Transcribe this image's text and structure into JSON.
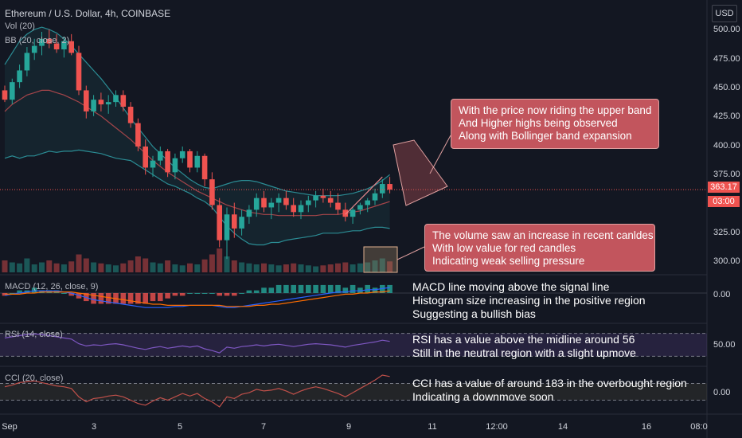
{
  "header": {
    "symbol_line": "Ethereum / U.S. Dollar, 4h, COINBASE",
    "vol_label": "Vol (20)",
    "bb_label": "BB (20, close, 2)",
    "macd_label": "MACD (12, 26, close, 9)",
    "rsi_label": "RSI (14, close)",
    "cci_label": "CCI (20, close)",
    "currency": "USD"
  },
  "price_axis": {
    "labels": [
      "500.00",
      "475.00",
      "450.00",
      "425.00",
      "400.00",
      "375.00",
      "325.00",
      "300.00"
    ],
    "current_price": "363.17",
    "countdown": "03:00"
  },
  "indicator_axis": {
    "macd_zero": "0.00",
    "rsi_mid": "50.00",
    "cci_zero": "0.00"
  },
  "time_axis": {
    "labels": [
      "Sep",
      "3",
      "5",
      "7",
      "9",
      "11",
      "12:00",
      "14",
      "16",
      "08:0"
    ]
  },
  "annotations": {
    "price_callout": [
      "With the price now riding the upper band",
      "And Higher highs being observed",
      "Along with Bollinger band expansion"
    ],
    "volume_callout": [
      "The volume saw an increase in recent canldes",
      "With low value for red candles",
      "Indicating weak selling pressure"
    ],
    "macd_notes": [
      "MACD line moving above the signal line",
      "Histogram size increasing in the positive region",
      "Suggesting a bullish bias"
    ],
    "rsi_notes": [
      "RSI has a value above the midline around 56",
      "Still in the neutral region with a slight upmove"
    ],
    "cci_notes": [
      "CCI has a value of around 183 in the overbought region",
      "Indicating a downmove soon"
    ]
  },
  "colors": {
    "background": "#131722",
    "up": "#26a69a",
    "down": "#ef5350",
    "bb_band": "#2b8c94",
    "bb_basis": "#a5454a",
    "rsi_line": "#7e57c2",
    "cci_line": "#c0504a",
    "callout_fill": "#c2555d"
  },
  "chart_data": {
    "type": "candlestick",
    "interval": "4h",
    "ylim": [
      290,
      515
    ],
    "candles": [
      [
        448,
        452,
        438,
        440
      ],
      [
        440,
        458,
        436,
        455
      ],
      [
        455,
        470,
        450,
        465
      ],
      [
        465,
        485,
        460,
        480
      ],
      [
        480,
        492,
        474,
        486
      ],
      [
        486,
        498,
        478,
        492
      ],
      [
        492,
        500,
        484,
        488
      ],
      [
        488,
        496,
        480,
        483
      ],
      [
        483,
        494,
        476,
        490
      ],
      [
        490,
        496,
        478,
        480
      ],
      [
        480,
        486,
        444,
        448
      ],
      [
        448,
        452,
        424,
        430
      ],
      [
        430,
        444,
        426,
        440
      ],
      [
        440,
        446,
        430,
        436
      ],
      [
        436,
        444,
        428,
        438
      ],
      [
        438,
        448,
        434,
        444
      ],
      [
        444,
        448,
        430,
        434
      ],
      [
        434,
        438,
        416,
        420
      ],
      [
        420,
        424,
        396,
        400
      ],
      [
        400,
        406,
        376,
        382
      ],
      [
        382,
        392,
        374,
        388
      ],
      [
        388,
        400,
        384,
        396
      ],
      [
        396,
        398,
        374,
        378
      ],
      [
        378,
        394,
        372,
        390
      ],
      [
        390,
        400,
        386,
        396
      ],
      [
        396,
        398,
        378,
        382
      ],
      [
        382,
        396,
        378,
        392
      ],
      [
        392,
        394,
        366,
        372
      ],
      [
        372,
        378,
        346,
        350
      ],
      [
        350,
        356,
        314,
        320
      ],
      [
        320,
        348,
        304,
        342
      ],
      [
        342,
        352,
        322,
        330
      ],
      [
        330,
        346,
        324,
        340
      ],
      [
        340,
        350,
        334,
        346
      ],
      [
        346,
        360,
        340,
        356
      ],
      [
        356,
        362,
        344,
        348
      ],
      [
        348,
        356,
        338,
        352
      ],
      [
        352,
        360,
        344,
        356
      ],
      [
        356,
        362,
        346,
        350
      ],
      [
        350,
        356,
        340,
        344
      ],
      [
        344,
        354,
        338,
        350
      ],
      [
        350,
        358,
        344,
        354
      ],
      [
        354,
        362,
        348,
        358
      ],
      [
        358,
        364,
        352,
        356
      ],
      [
        356,
        362,
        348,
        352
      ],
      [
        352,
        360,
        342,
        346
      ],
      [
        346,
        352,
        336,
        340
      ],
      [
        340,
        348,
        334,
        346
      ],
      [
        346,
        352,
        342,
        350
      ],
      [
        350,
        356,
        344,
        354
      ],
      [
        354,
        364,
        350,
        360
      ],
      [
        360,
        372,
        356,
        368
      ],
      [
        368,
        374,
        360,
        363.17
      ]
    ],
    "volume": [
      12,
      10,
      9,
      14,
      8,
      10,
      12,
      9,
      8,
      11,
      18,
      14,
      10,
      9,
      8,
      7,
      9,
      12,
      16,
      14,
      10,
      9,
      12,
      8,
      7,
      9,
      8,
      13,
      18,
      24,
      16,
      12,
      10,
      9,
      8,
      9,
      8,
      7,
      8,
      9,
      8,
      7,
      6,
      7,
      8,
      9,
      10,
      8,
      9,
      10,
      12,
      14,
      11
    ],
    "bollinger": {
      "basis": [
        430,
        436,
        440,
        444,
        446,
        448,
        448,
        446,
        444,
        441,
        438,
        434,
        430,
        426,
        421,
        416,
        411,
        406,
        400,
        394,
        388,
        383,
        378,
        374,
        370,
        366,
        362,
        359,
        356,
        353,
        350,
        348,
        346,
        344,
        343,
        342,
        342,
        341,
        341,
        341,
        341,
        341,
        341,
        342,
        342,
        342,
        343,
        344,
        345,
        347,
        349,
        351,
        353
      ],
      "upper": [
        470,
        480,
        490,
        496,
        500,
        502,
        500,
        497,
        492,
        486,
        479,
        472,
        465,
        458,
        450,
        442,
        433,
        424,
        416,
        408,
        400,
        394,
        388,
        382,
        377,
        372,
        368,
        365,
        364,
        366,
        368,
        370,
        371,
        371,
        370,
        368,
        366,
        364,
        362,
        361,
        360,
        359,
        358,
        358,
        358,
        358,
        359,
        360,
        362,
        364,
        367,
        371,
        376
      ],
      "lower": [
        390,
        392,
        390,
        392,
        392,
        394,
        396,
        395,
        396,
        396,
        397,
        396,
        395,
        394,
        392,
        390,
        389,
        388,
        384,
        380,
        376,
        372,
        368,
        366,
        363,
        360,
        356,
        353,
        348,
        340,
        332,
        326,
        321,
        317,
        316,
        316,
        318,
        318,
        320,
        321,
        322,
        323,
        324,
        326,
        326,
        326,
        327,
        328,
        328,
        330,
        331,
        331,
        330
      ]
    },
    "macd": {
      "macd_line": [
        -2,
        -1,
        0,
        1,
        2,
        2,
        2,
        2,
        1,
        0,
        -2,
        -4,
        -6,
        -7,
        -8,
        -9,
        -10,
        -11,
        -12,
        -13,
        -13,
        -13,
        -13,
        -12,
        -12,
        -11,
        -11,
        -11,
        -11,
        -12,
        -13,
        -13,
        -12,
        -11,
        -10,
        -9,
        -8,
        -7,
        -6,
        -5,
        -4,
        -3,
        -2,
        -1,
        0,
        1,
        1,
        2,
        2,
        3,
        3,
        4,
        5
      ],
      "signal_line": [
        -1,
        -1,
        -1,
        0,
        0,
        1,
        1,
        1,
        1,
        1,
        0,
        -1,
        -2,
        -3,
        -4,
        -5,
        -6,
        -7,
        -8,
        -9,
        -10,
        -10,
        -11,
        -11,
        -11,
        -11,
        -11,
        -11,
        -11,
        -11,
        -12,
        -12,
        -12,
        -12,
        -11,
        -11,
        -10,
        -10,
        -9,
        -8,
        -7,
        -6,
        -5,
        -4,
        -3,
        -2,
        -1,
        -1,
        0,
        0,
        1,
        1,
        2
      ],
      "zero_label": "0.00"
    },
    "rsi": {
      "values": [
        62,
        64,
        66,
        68,
        69,
        68,
        66,
        64,
        62,
        60,
        52,
        48,
        50,
        49,
        51,
        52,
        50,
        47,
        44,
        42,
        45,
        47,
        44,
        46,
        48,
        46,
        48,
        43,
        40,
        36,
        46,
        44,
        47,
        48,
        50,
        48,
        50,
        51,
        49,
        47,
        49,
        51,
        52,
        51,
        50,
        48,
        46,
        49,
        51,
        53,
        55,
        58,
        56
      ],
      "upper": 70,
      "lower": 30,
      "mid": 50
    },
    "cci": {
      "values": [
        60,
        80,
        110,
        120,
        130,
        110,
        90,
        70,
        60,
        40,
        -60,
        -120,
        -80,
        -70,
        -50,
        -40,
        -60,
        -100,
        -140,
        -160,
        -110,
        -70,
        -100,
        -60,
        -20,
        -50,
        -20,
        -80,
        -120,
        -180,
        -60,
        -80,
        -30,
        -10,
        30,
        10,
        20,
        40,
        10,
        -30,
        10,
        40,
        60,
        40,
        10,
        -20,
        -60,
        -10,
        40,
        90,
        140,
        200,
        183
      ],
      "upper": 100,
      "lower": -100
    }
  }
}
